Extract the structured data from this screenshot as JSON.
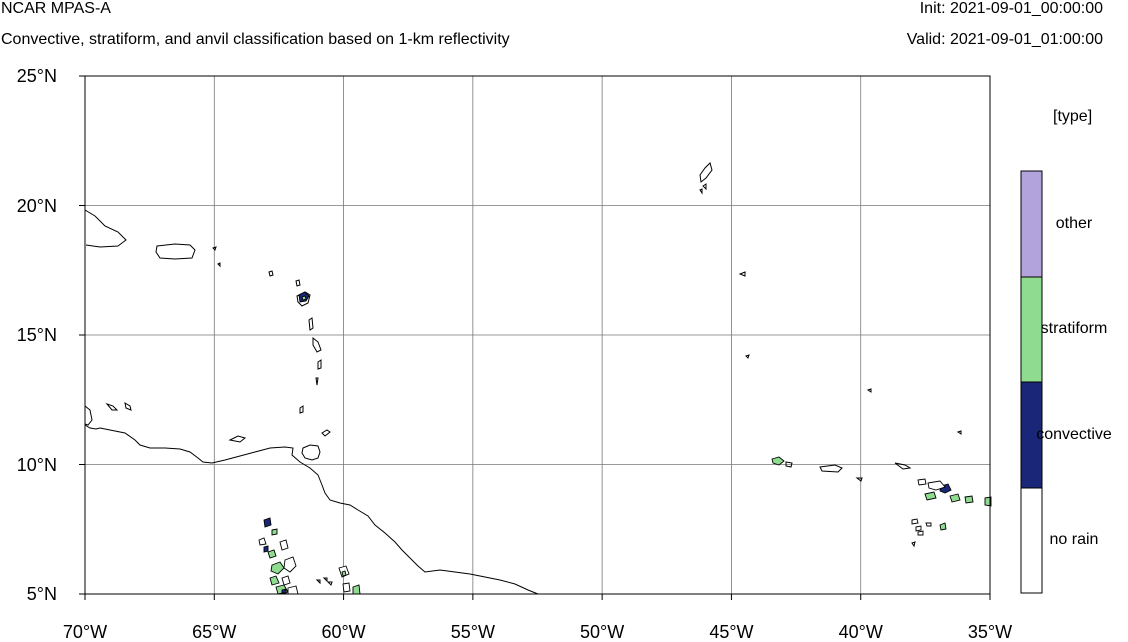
{
  "header": {
    "title": "NCAR MPAS-A",
    "subtitle": "Convective, stratiform, and anvil classification based on 1-km reflectivity",
    "init": "Init: 2021-09-01_00:00:00",
    "valid": "Valid: 2021-09-01_01:00:00"
  },
  "map": {
    "lon_range": [
      -70,
      -35
    ],
    "lat_range": [
      5,
      25
    ],
    "lat_ticks": [
      {
        "value": 25,
        "label": "25°N"
      },
      {
        "value": 20,
        "label": "20°N"
      },
      {
        "value": 15,
        "label": "15°N"
      },
      {
        "value": 10,
        "label": "10°N"
      },
      {
        "value": 5,
        "label": "5°N"
      }
    ],
    "lon_ticks": [
      {
        "value": -70,
        "label": "70°W"
      },
      {
        "value": -65,
        "label": "65°W"
      },
      {
        "value": -60,
        "label": "60°W"
      },
      {
        "value": -55,
        "label": "55°W"
      },
      {
        "value": -50,
        "label": "50°W"
      },
      {
        "value": -45,
        "label": "45°W"
      },
      {
        "value": -40,
        "label": "40°W"
      },
      {
        "value": -35,
        "label": "35°W"
      }
    ],
    "grid": true
  },
  "legend": {
    "title": "[type]",
    "entries": [
      {
        "label": "other",
        "color": "#b3a3dc"
      },
      {
        "label": "stratiform",
        "color": "#8fdc90"
      },
      {
        "label": "convective",
        "color": "#1a2778"
      },
      {
        "label": "no rain",
        "color": "#ffffff"
      }
    ]
  }
}
